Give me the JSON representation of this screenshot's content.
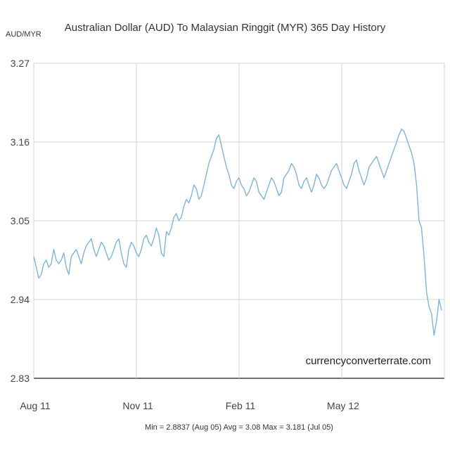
{
  "chart_data": {
    "type": "line",
    "title": "Australian Dollar (AUD) To Malaysian Ringgit (MYR) 365 Day History",
    "ylabel": "AUD/MYR",
    "xlabel": "",
    "ylim": [
      2.83,
      3.27
    ],
    "yticks": [
      "3.27",
      "3.16",
      "3.05",
      "2.94",
      "2.83"
    ],
    "xticks": [
      "Aug 11",
      "Nov 11",
      "Feb 11",
      "May 12"
    ],
    "watermark": "currencyconverterrate.com",
    "summary": "Min = 2.8837 (Aug 05) Avg = 3.08 Max = 3.181 (Jul 05)",
    "grid": true,
    "line_color": "#7db4e0",
    "series": [
      {
        "values": [
          3.0,
          2.985,
          2.97,
          2.975,
          2.99,
          2.995,
          2.985,
          2.99,
          3.01,
          2.995,
          2.99,
          2.995,
          3.005,
          2.985,
          2.975,
          3.0,
          3.005,
          3.01,
          3.0,
          2.99,
          3.005,
          3.015,
          3.02,
          3.025,
          3.01,
          3.0,
          3.01,
          3.02,
          3.015,
          3.005,
          2.995,
          3.0,
          3.01,
          3.02,
          3.025,
          3.005,
          2.99,
          2.985,
          3.01,
          3.02,
          3.015,
          3.005,
          3.0,
          3.01,
          3.025,
          3.03,
          3.02,
          3.015,
          3.025,
          3.04,
          3.03,
          3.005,
          3.0,
          3.035,
          3.03,
          3.04,
          3.055,
          3.06,
          3.05,
          3.055,
          3.07,
          3.08,
          3.075,
          3.085,
          3.1,
          3.095,
          3.08,
          3.085,
          3.1,
          3.115,
          3.13,
          3.14,
          3.15,
          3.165,
          3.17,
          3.155,
          3.14,
          3.125,
          3.115,
          3.1,
          3.095,
          3.105,
          3.11,
          3.1,
          3.095,
          3.085,
          3.09,
          3.1,
          3.11,
          3.105,
          3.09,
          3.085,
          3.08,
          3.09,
          3.1,
          3.11,
          3.105,
          3.095,
          3.085,
          3.09,
          3.11,
          3.115,
          3.12,
          3.13,
          3.125,
          3.115,
          3.1,
          3.095,
          3.105,
          3.11,
          3.1,
          3.09,
          3.1,
          3.115,
          3.11,
          3.1,
          3.095,
          3.1,
          3.11,
          3.12,
          3.125,
          3.13,
          3.12,
          3.11,
          3.1,
          3.095,
          3.105,
          3.115,
          3.13,
          3.135,
          3.12,
          3.11,
          3.1,
          3.11,
          3.125,
          3.13,
          3.135,
          3.14,
          3.13,
          3.12,
          3.11,
          3.12,
          3.13,
          3.14,
          3.15,
          3.16,
          3.17,
          3.178,
          3.175,
          3.165,
          3.155,
          3.145,
          3.13,
          3.1,
          3.05,
          3.04,
          3.0,
          2.95,
          2.93,
          2.92,
          2.89,
          2.91,
          2.94,
          2.925
        ]
      }
    ]
  }
}
